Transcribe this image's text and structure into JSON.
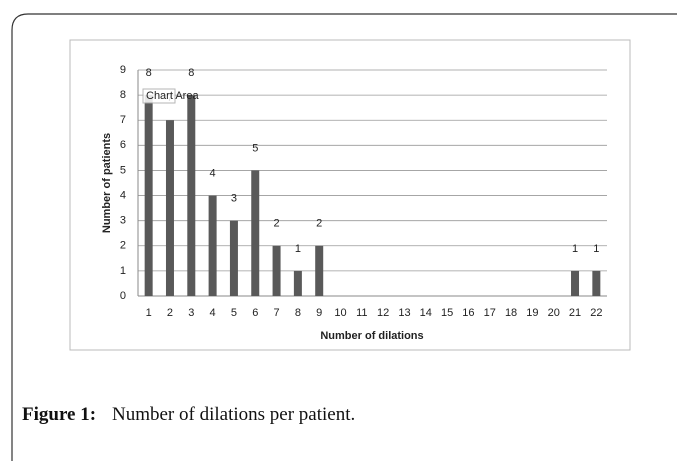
{
  "chart_data": {
    "type": "bar",
    "xlabel": "Number of dilations",
    "ylabel": "Number of patients",
    "categories": [
      "1",
      "2",
      "3",
      "4",
      "5",
      "6",
      "7",
      "8",
      "9",
      "10",
      "11",
      "12",
      "13",
      "14",
      "15",
      "16",
      "17",
      "18",
      "19",
      "20",
      "21",
      "22"
    ],
    "values": [
      8,
      7,
      8,
      4,
      3,
      5,
      2,
      1,
      2,
      0,
      0,
      0,
      0,
      0,
      0,
      0,
      0,
      0,
      0,
      0,
      1,
      1
    ],
    "color": "#595959",
    "ylim": [
      0,
      9
    ],
    "yticks": [
      0,
      1,
      2,
      3,
      4,
      5,
      6,
      7,
      8,
      9
    ],
    "grid": true,
    "tooltip": "Chart Area"
  },
  "caption": {
    "label": "Figure 1:",
    "text": "Number of dilations per patient."
  }
}
